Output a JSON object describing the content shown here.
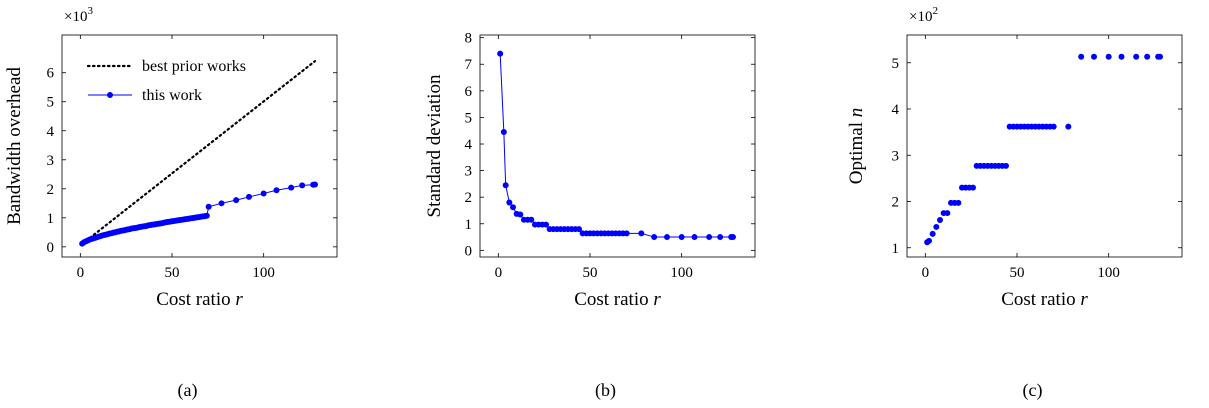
{
  "colors": {
    "series": "#0000ff",
    "axes": "#000000",
    "dotted": "#000000"
  },
  "chart_data": [
    {
      "type": "line",
      "caption": "(a)",
      "xlabel": "Cost ratio",
      "xlabel_var": "r",
      "ylabel": "Bandwidth overhead",
      "y_multiplier_base": "×10",
      "y_multiplier_exp": "3",
      "xlim": [
        -10,
        140
      ],
      "ylim": [
        -0.35,
        7.3
      ],
      "xticks": [
        0,
        50,
        100
      ],
      "xtick_labels": [
        "0",
        "50",
        "100"
      ],
      "yticks": [
        0,
        1,
        2,
        3,
        4,
        5,
        6
      ],
      "ytick_labels": [
        "0",
        "1",
        "2",
        "3",
        "4",
        "5",
        "6"
      ],
      "legend": {
        "position": "top-left",
        "entries": [
          "best prior works",
          "this work"
        ]
      },
      "series": [
        {
          "name": "best prior works",
          "style": "dotted",
          "x": [
            1,
            128
          ],
          "y": [
            0.1,
            6.4
          ]
        },
        {
          "name": "this work",
          "style": "line-marker",
          "x": [
            1,
            2,
            3,
            4,
            5,
            6,
            7,
            8,
            9,
            10,
            11,
            12,
            13,
            14,
            15,
            16,
            17,
            18,
            19,
            20,
            21,
            22,
            23,
            24,
            25,
            26,
            27,
            28,
            29,
            30,
            31,
            32,
            33,
            34,
            35,
            36,
            37,
            38,
            39,
            40,
            41,
            42,
            43,
            44,
            45,
            46,
            47,
            48,
            49,
            50,
            51,
            52,
            53,
            54,
            55,
            56,
            57,
            58,
            59,
            60,
            61,
            62,
            63,
            64,
            65,
            66,
            67,
            68,
            69,
            70,
            77,
            85,
            92,
            100,
            107,
            115,
            121,
            127,
            128
          ],
          "y": [
            0.11,
            0.16,
            0.19,
            0.22,
            0.25,
            0.27,
            0.29,
            0.31,
            0.33,
            0.35,
            0.37,
            0.39,
            0.41,
            0.42,
            0.44,
            0.46,
            0.47,
            0.49,
            0.5,
            0.52,
            0.53,
            0.55,
            0.56,
            0.57,
            0.59,
            0.6,
            0.61,
            0.63,
            0.64,
            0.65,
            0.66,
            0.68,
            0.69,
            0.7,
            0.71,
            0.72,
            0.74,
            0.75,
            0.76,
            0.77,
            0.78,
            0.79,
            0.8,
            0.81,
            0.82,
            0.84,
            0.85,
            0.86,
            0.87,
            0.88,
            0.89,
            0.9,
            0.91,
            0.92,
            0.93,
            0.94,
            0.95,
            0.96,
            0.97,
            0.98,
            0.99,
            1.0,
            1.01,
            1.02,
            1.03,
            1.04,
            1.05,
            1.06,
            1.07,
            1.38,
            1.5,
            1.61,
            1.72,
            1.84,
            1.95,
            2.04,
            2.12,
            2.14,
            2.15
          ]
        }
      ]
    },
    {
      "type": "line",
      "caption": "(b)",
      "xlabel": "Cost ratio",
      "xlabel_var": "r",
      "ylabel": "Standard deviation",
      "xlim": [
        -10,
        140
      ],
      "ylim": [
        -0.25,
        8.1
      ],
      "xticks": [
        0,
        50,
        100
      ],
      "xtick_labels": [
        "0",
        "50",
        "100"
      ],
      "yticks": [
        0,
        1,
        2,
        3,
        4,
        5,
        6,
        7,
        8
      ],
      "ytick_labels": [
        "0",
        "1",
        "2",
        "3",
        "4",
        "5",
        "6",
        "7",
        "8"
      ],
      "series": [
        {
          "name": "",
          "style": "line-marker",
          "x": [
            1,
            3,
            4,
            6,
            8,
            10,
            12,
            14,
            16,
            18,
            20,
            22,
            24,
            26,
            28,
            30,
            32,
            34,
            36,
            38,
            40,
            42,
            44,
            46,
            48,
            50,
            52,
            54,
            56,
            58,
            60,
            62,
            64,
            66,
            68,
            70,
            78,
            85,
            92,
            100,
            107,
            115,
            121,
            127,
            128
          ],
          "y": [
            7.4,
            4.45,
            2.45,
            1.8,
            1.62,
            1.37,
            1.35,
            1.15,
            1.15,
            1.15,
            0.97,
            0.97,
            0.97,
            0.97,
            0.8,
            0.8,
            0.8,
            0.8,
            0.8,
            0.8,
            0.8,
            0.8,
            0.8,
            0.64,
            0.64,
            0.64,
            0.64,
            0.64,
            0.64,
            0.64,
            0.64,
            0.64,
            0.64,
            0.64,
            0.64,
            0.64,
            0.64,
            0.5,
            0.5,
            0.5,
            0.5,
            0.5,
            0.5,
            0.5,
            0.5
          ]
        }
      ]
    },
    {
      "type": "scatter",
      "caption": "(c)",
      "xlabel": "Cost ratio",
      "xlabel_var": "r",
      "ylabel": "Optimal",
      "ylabel_var": "n",
      "y_multiplier_base": "×10",
      "y_multiplier_exp": "2",
      "xlim": [
        -10,
        140
      ],
      "ylim": [
        0.8,
        5.6
      ],
      "xticks": [
        0,
        50,
        100
      ],
      "xtick_labels": [
        "0",
        "50",
        "100"
      ],
      "yticks": [
        1,
        2,
        3,
        4,
        5
      ],
      "ytick_labels": [
        "1",
        "2",
        "3",
        "4",
        "5"
      ],
      "series": [
        {
          "name": "",
          "style": "marker",
          "x": [
            1,
            2,
            4,
            6,
            8,
            10,
            12,
            14,
            16,
            18,
            20,
            22,
            24,
            26,
            28,
            30,
            32,
            34,
            36,
            38,
            40,
            42,
            44,
            46,
            48,
            50,
            52,
            54,
            56,
            58,
            60,
            62,
            64,
            66,
            68,
            70,
            78,
            85,
            92,
            100,
            107,
            115,
            121,
            127,
            128
          ],
          "y": [
            1.12,
            1.15,
            1.3,
            1.45,
            1.6,
            1.75,
            1.75,
            1.97,
            1.97,
            1.97,
            2.3,
            2.3,
            2.3,
            2.3,
            2.77,
            2.77,
            2.77,
            2.77,
            2.77,
            2.77,
            2.77,
            2.77,
            2.77,
            3.62,
            3.62,
            3.62,
            3.62,
            3.62,
            3.62,
            3.62,
            3.62,
            3.62,
            3.62,
            3.62,
            3.62,
            3.62,
            3.62,
            5.13,
            5.13,
            5.13,
            5.13,
            5.13,
            5.13,
            5.13,
            5.13
          ]
        }
      ]
    }
  ]
}
